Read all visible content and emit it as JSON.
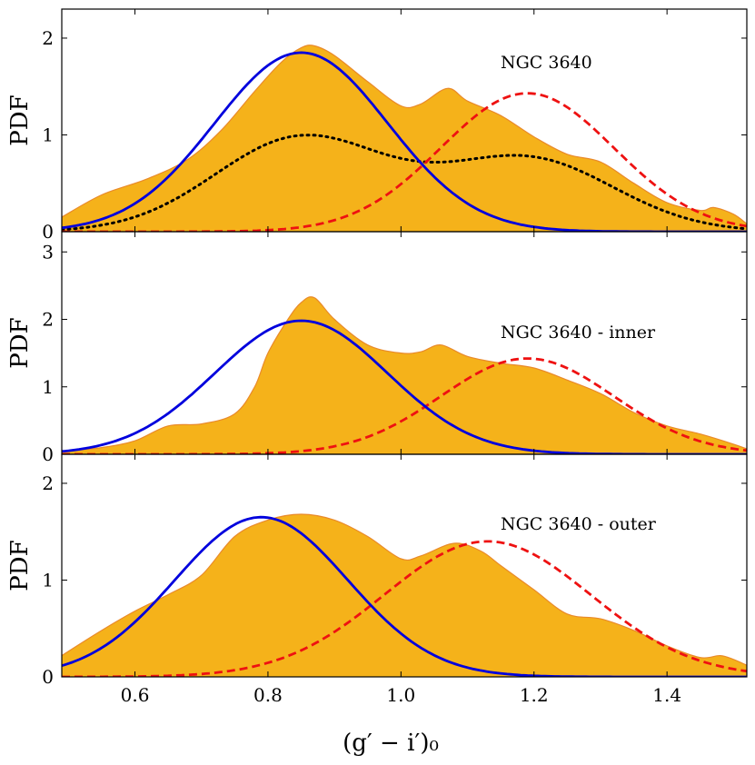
{
  "chart_data": [
    {
      "type": "area",
      "label": "NGC 3640",
      "ylabel": "PDF",
      "xlim": [
        0.49,
        1.52
      ],
      "ylim": [
        0,
        2.3
      ],
      "yticks": [
        "0",
        "1",
        "2"
      ],
      "grid": false,
      "colors": {
        "kde_fill": "#f5b21a",
        "kde_edge": "#e98a2a",
        "blue": "#0000dd",
        "red": "#ee1111",
        "total": "#000000"
      },
      "kde": {
        "x": [
          0.49,
          0.55,
          0.62,
          0.68,
          0.73,
          0.78,
          0.82,
          0.85,
          0.87,
          0.9,
          0.95,
          1.0,
          1.03,
          1.07,
          1.1,
          1.15,
          1.2,
          1.25,
          1.3,
          1.35,
          1.4,
          1.45,
          1.47,
          1.5,
          1.52
        ],
        "y": [
          0.15,
          0.38,
          0.55,
          0.75,
          1.05,
          1.45,
          1.75,
          1.9,
          1.92,
          1.82,
          1.55,
          1.3,
          1.32,
          1.48,
          1.35,
          1.2,
          0.98,
          0.8,
          0.72,
          0.5,
          0.3,
          0.22,
          0.25,
          0.18,
          0.08
        ]
      },
      "blue_gaussian": {
        "mu": 0.85,
        "sigma": 0.13,
        "amp": 1.85
      },
      "red_gaussian": {
        "mu": 1.19,
        "sigma": 0.13,
        "amp": 1.43
      },
      "show_total": true
    },
    {
      "type": "area",
      "label": "NGC 3640 - inner",
      "ylabel": "PDF",
      "xlim": [
        0.49,
        1.52
      ],
      "ylim": [
        0,
        3.3
      ],
      "yticks": [
        "0",
        "1",
        "2",
        "3"
      ],
      "grid": false,
      "colors": {
        "kde_fill": "#f5b21a",
        "kde_edge": "#e98a2a",
        "blue": "#0000dd",
        "red": "#ee1111"
      },
      "kde": {
        "x": [
          0.49,
          0.55,
          0.6,
          0.65,
          0.7,
          0.75,
          0.78,
          0.8,
          0.83,
          0.85,
          0.87,
          0.9,
          0.95,
          1.0,
          1.03,
          1.06,
          1.1,
          1.15,
          1.2,
          1.25,
          1.3,
          1.35,
          1.4,
          1.45,
          1.5,
          1.52
        ],
        "y": [
          0.05,
          0.1,
          0.2,
          0.42,
          0.45,
          0.6,
          1.0,
          1.5,
          2.0,
          2.25,
          2.32,
          2.0,
          1.62,
          1.5,
          1.52,
          1.62,
          1.45,
          1.35,
          1.28,
          1.1,
          0.9,
          0.62,
          0.42,
          0.3,
          0.15,
          0.08
        ]
      },
      "blue_gaussian": {
        "mu": 0.85,
        "sigma": 0.13,
        "amp": 1.98
      },
      "red_gaussian": {
        "mu": 1.19,
        "sigma": 0.13,
        "amp": 1.42
      },
      "show_total": false
    },
    {
      "type": "area",
      "label": "NGC 3640 - outer",
      "ylabel": "PDF",
      "xlim": [
        0.49,
        1.52
      ],
      "ylim": [
        0,
        2.3
      ],
      "yticks": [
        "0",
        "1",
        "2"
      ],
      "grid": false,
      "colors": {
        "kde_fill": "#f5b21a",
        "kde_edge": "#e98a2a",
        "blue": "#0000dd",
        "red": "#ee1111"
      },
      "kde": {
        "x": [
          0.49,
          0.55,
          0.6,
          0.65,
          0.7,
          0.75,
          0.8,
          0.85,
          0.9,
          0.95,
          1.0,
          1.03,
          1.08,
          1.12,
          1.15,
          1.2,
          1.25,
          1.3,
          1.35,
          1.4,
          1.45,
          1.48,
          1.5,
          1.52
        ],
        "y": [
          0.22,
          0.48,
          0.68,
          0.85,
          1.05,
          1.45,
          1.62,
          1.68,
          1.62,
          1.45,
          1.22,
          1.25,
          1.38,
          1.3,
          1.15,
          0.9,
          0.65,
          0.6,
          0.48,
          0.32,
          0.2,
          0.22,
          0.18,
          0.12
        ]
      },
      "blue_gaussian": {
        "mu": 0.79,
        "sigma": 0.13,
        "amp": 1.65
      },
      "red_gaussian": {
        "mu": 1.13,
        "sigma": 0.155,
        "amp": 1.4
      },
      "show_total": false
    }
  ],
  "shared_axis": {
    "xticks": [
      "0.6",
      "0.8",
      "1.0",
      "1.2",
      "1.4"
    ],
    "xtick_values": [
      0.6,
      0.8,
      1.0,
      1.2,
      1.4
    ],
    "xlabel": "(g′ − i′)₀"
  }
}
